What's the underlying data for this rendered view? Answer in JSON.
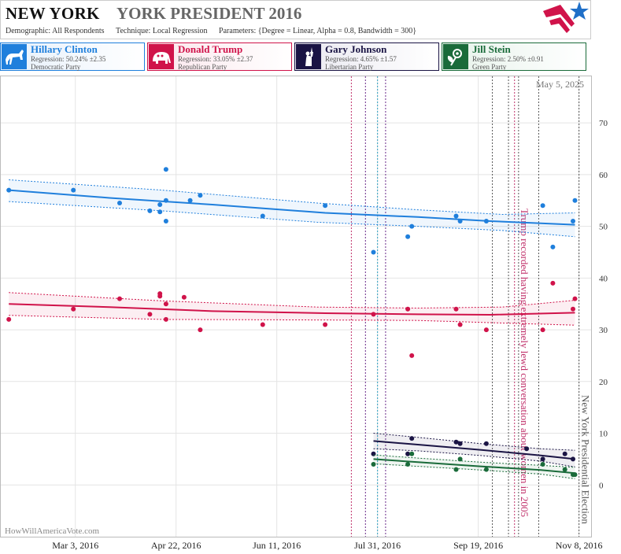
{
  "header": {
    "state": "NEW YORK",
    "race": "YORK PRESIDENT 2016",
    "demographic_label": "Demographic:",
    "demographic": "All Respondents",
    "technique_label": "Technique:",
    "technique": "Local Regression",
    "parameters_label": "Parameters:",
    "parameters": "{Degree = Linear, Alpha = 0.8, Bandwidth = 300}"
  },
  "candidates": [
    {
      "name": "Hillary Clinton",
      "regression": "Regression: 50.24% ±2.35",
      "party": "Democratic Party",
      "color": "#1f7fdc",
      "icon": "donkey-icon"
    },
    {
      "name": "Donald Trump",
      "regression": "Regression: 33.05% ±2.37",
      "party": "Republican Party",
      "color": "#d0134a",
      "icon": "elephant-icon"
    },
    {
      "name": "Gary Johnson",
      "regression": "Regression: 4.65% ±1.57",
      "party": "Libertarian Party",
      "color": "#1a1444",
      "icon": "liberty-icon"
    },
    {
      "name": "Jill Stein",
      "regression": "Regression: 2.50% ±0.91",
      "party": "Green Party",
      "color": "#1a6b3a",
      "icon": "flower-icon"
    }
  ],
  "watermark": "HowWillAmericaVote.com",
  "date_label": "May 5, 2025",
  "chart_data": {
    "type": "scatter",
    "x_ticks": [
      {
        "label": "Mar 3, 2016",
        "date": "2016-03-03"
      },
      {
        "label": "Apr 22, 2016",
        "date": "2016-04-22"
      },
      {
        "label": "Jun 11, 2016",
        "date": "2016-06-11"
      },
      {
        "label": "Jul 31, 2016",
        "date": "2016-07-31"
      },
      {
        "label": "Sep 19, 2016",
        "date": "2016-09-19"
      },
      {
        "label": "Nov 8, 2016",
        "date": "2016-11-08"
      }
    ],
    "y_ticks": [
      0,
      10,
      20,
      30,
      40,
      50,
      60,
      70
    ],
    "xlim": [
      "2016-01-26",
      "2016-11-14"
    ],
    "ylim": [
      -10,
      79
    ],
    "y_axis_side": "right",
    "grid": true,
    "series": [
      {
        "name": "Hillary Clinton",
        "color": "#1f7fdc",
        "points": [
          [
            "2016-01-30",
            57
          ],
          [
            "2016-03-02",
            57
          ],
          [
            "2016-03-25",
            54.5
          ],
          [
            "2016-04-09",
            53
          ],
          [
            "2016-04-14",
            52.8
          ],
          [
            "2016-04-14",
            54.2
          ],
          [
            "2016-04-17",
            61
          ],
          [
            "2016-04-17",
            55
          ],
          [
            "2016-04-17",
            51
          ],
          [
            "2016-04-29",
            55
          ],
          [
            "2016-05-04",
            56
          ],
          [
            "2016-06-04",
            52
          ],
          [
            "2016-07-05",
            54
          ],
          [
            "2016-07-29",
            45
          ],
          [
            "2016-08-15",
            48
          ],
          [
            "2016-08-17",
            50
          ],
          [
            "2016-09-08",
            52
          ],
          [
            "2016-09-10",
            51
          ],
          [
            "2016-09-23",
            51
          ],
          [
            "2016-10-21",
            54
          ],
          [
            "2016-10-26",
            46
          ],
          [
            "2016-11-05",
            51
          ],
          [
            "2016-11-06",
            55
          ]
        ],
        "regression": [
          [
            "2016-01-30",
            57
          ],
          [
            "2016-03-20",
            55.5
          ],
          [
            "2016-05-10",
            54.2
          ],
          [
            "2016-07-05",
            52.6
          ],
          [
            "2016-08-20",
            51.8
          ],
          [
            "2016-09-25",
            51
          ],
          [
            "2016-11-06",
            50.3
          ]
        ],
        "ci_upper": [
          [
            "2016-01-30",
            59
          ],
          [
            "2016-04-15",
            57
          ],
          [
            "2016-07-01",
            54.5
          ],
          [
            "2016-08-20",
            53.2
          ],
          [
            "2016-10-01",
            52.3
          ],
          [
            "2016-11-06",
            52.6
          ]
        ],
        "ci_lower": [
          [
            "2016-01-30",
            54.8
          ],
          [
            "2016-04-15",
            53
          ],
          [
            "2016-07-01",
            50.8
          ],
          [
            "2016-08-20",
            50
          ],
          [
            "2016-10-01",
            49.2
          ],
          [
            "2016-11-06",
            48
          ]
        ]
      },
      {
        "name": "Donald Trump",
        "color": "#d0134a",
        "points": [
          [
            "2016-01-30",
            32
          ],
          [
            "2016-03-02",
            34
          ],
          [
            "2016-03-25",
            36
          ],
          [
            "2016-04-09",
            33
          ],
          [
            "2016-04-14",
            37
          ],
          [
            "2016-04-14",
            36.5
          ],
          [
            "2016-04-17",
            35
          ],
          [
            "2016-04-17",
            32
          ],
          [
            "2016-04-26",
            36.3
          ],
          [
            "2016-05-04",
            30
          ],
          [
            "2016-06-04",
            31
          ],
          [
            "2016-07-05",
            31
          ],
          [
            "2016-07-29",
            33
          ],
          [
            "2016-08-15",
            34
          ],
          [
            "2016-08-17",
            25
          ],
          [
            "2016-09-08",
            34
          ],
          [
            "2016-09-10",
            31
          ],
          [
            "2016-09-23",
            30
          ],
          [
            "2016-10-21",
            30
          ],
          [
            "2016-10-26",
            39
          ],
          [
            "2016-11-05",
            34
          ],
          [
            "2016-11-06",
            36
          ]
        ],
        "regression": [
          [
            "2016-01-30",
            35
          ],
          [
            "2016-03-20",
            34.4
          ],
          [
            "2016-05-10",
            33.6
          ],
          [
            "2016-07-05",
            33.2
          ],
          [
            "2016-08-20",
            33
          ],
          [
            "2016-09-25",
            32.9
          ],
          [
            "2016-11-06",
            33.3
          ]
        ],
        "ci_upper": [
          [
            "2016-01-30",
            37.2
          ],
          [
            "2016-04-15",
            35.6
          ],
          [
            "2016-07-01",
            34.4
          ],
          [
            "2016-08-20",
            34.2
          ],
          [
            "2016-10-01",
            34.4
          ],
          [
            "2016-11-06",
            35.7
          ]
        ],
        "ci_lower": [
          [
            "2016-01-30",
            32.8
          ],
          [
            "2016-04-15",
            32
          ],
          [
            "2016-07-01",
            31.9
          ],
          [
            "2016-08-20",
            31.8
          ],
          [
            "2016-10-01",
            31.3
          ],
          [
            "2016-11-06",
            30.9
          ]
        ]
      },
      {
        "name": "Gary Johnson",
        "color": "#1a1444",
        "points": [
          [
            "2016-07-29",
            6
          ],
          [
            "2016-08-15",
            6
          ],
          [
            "2016-08-17",
            9
          ],
          [
            "2016-09-08",
            8.3
          ],
          [
            "2016-09-10",
            8
          ],
          [
            "2016-09-23",
            8
          ],
          [
            "2016-10-13",
            7
          ],
          [
            "2016-10-21",
            5
          ],
          [
            "2016-11-01",
            6
          ],
          [
            "2016-11-05",
            5
          ]
        ],
        "regression": [
          [
            "2016-07-29",
            8.5
          ],
          [
            "2016-08-20",
            7.8
          ],
          [
            "2016-09-20",
            6.8
          ],
          [
            "2016-10-20",
            5.7
          ],
          [
            "2016-11-06",
            5
          ]
        ],
        "ci_upper": [
          [
            "2016-07-29",
            10
          ],
          [
            "2016-08-20",
            9.2
          ],
          [
            "2016-09-20",
            8
          ],
          [
            "2016-10-20",
            7
          ],
          [
            "2016-11-06",
            6.7
          ]
        ],
        "ci_lower": [
          [
            "2016-07-29",
            7
          ],
          [
            "2016-08-20",
            6.6
          ],
          [
            "2016-09-20",
            5.7
          ],
          [
            "2016-10-20",
            4.6
          ],
          [
            "2016-11-06",
            3.5
          ]
        ]
      },
      {
        "name": "Jill Stein",
        "color": "#1a6b3a",
        "points": [
          [
            "2016-07-29",
            4
          ],
          [
            "2016-08-15",
            4
          ],
          [
            "2016-08-17",
            6
          ],
          [
            "2016-09-08",
            3
          ],
          [
            "2016-09-10",
            5
          ],
          [
            "2016-09-23",
            3
          ],
          [
            "2016-10-21",
            4
          ],
          [
            "2016-11-01",
            3
          ],
          [
            "2016-11-05",
            2
          ],
          [
            "2016-11-06",
            2
          ]
        ],
        "regression": [
          [
            "2016-07-29",
            5
          ],
          [
            "2016-08-20",
            4.4
          ],
          [
            "2016-09-20",
            3.6
          ],
          [
            "2016-10-20",
            2.9
          ],
          [
            "2016-11-06",
            2.3
          ]
        ],
        "ci_upper": [
          [
            "2016-07-29",
            5.8
          ],
          [
            "2016-08-20",
            5.2
          ],
          [
            "2016-09-20",
            4.4
          ],
          [
            "2016-10-20",
            3.8
          ],
          [
            "2016-11-06",
            3.4
          ]
        ],
        "ci_lower": [
          [
            "2016-07-29",
            4.1
          ],
          [
            "2016-08-20",
            3.6
          ],
          [
            "2016-09-20",
            2.9
          ],
          [
            "2016-10-20",
            2.1
          ],
          [
            "2016-11-06",
            1.2
          ]
        ]
      }
    ],
    "event_lines": [
      {
        "date": "2016-07-18",
        "color": "#c0306a"
      },
      {
        "date": "2016-07-25",
        "color": "#6a2a8a"
      },
      {
        "date": "2016-07-31",
        "color": "#2aa0c0"
      },
      {
        "date": "2016-08-04",
        "color": "#6a2a8a"
      },
      {
        "date": "2016-09-26",
        "color": "#555555"
      },
      {
        "date": "2016-10-04",
        "color": "#555555"
      },
      {
        "date": "2016-10-07",
        "color": "#c0306a"
      },
      {
        "date": "2016-10-09",
        "color": "#555555"
      },
      {
        "date": "2016-10-19",
        "color": "#555555"
      },
      {
        "date": "2016-11-08",
        "color": "#555555"
      }
    ],
    "annotations": [
      {
        "text": "Trump recorded having extremely lewd conversation about women in 2005",
        "date": "2016-10-09",
        "color": "#c0306a"
      },
      {
        "text": "New York Presidential Election",
        "date": "2016-11-08",
        "color": "#555555"
      }
    ]
  }
}
